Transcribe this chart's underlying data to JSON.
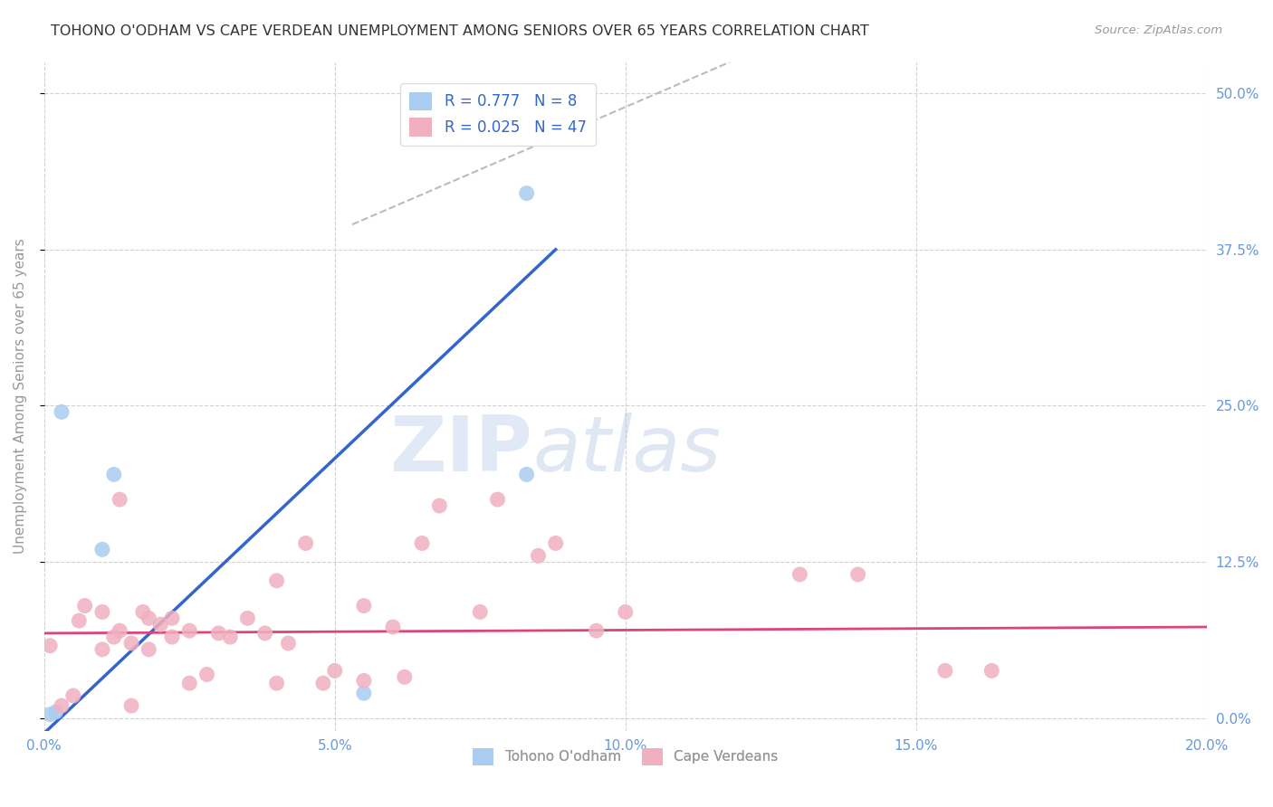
{
  "title": "TOHONO O'ODHAM VS CAPE VERDEAN UNEMPLOYMENT AMONG SENIORS OVER 65 YEARS CORRELATION CHART",
  "source": "Source: ZipAtlas.com",
  "ylabel": "Unemployment Among Seniors over 65 years",
  "xmin": 0.0,
  "xmax": 0.2,
  "ymin": -0.01,
  "ymax": 0.525,
  "xticks": [
    0.0,
    0.05,
    0.1,
    0.15,
    0.2
  ],
  "yticks": [
    0.0,
    0.125,
    0.25,
    0.375,
    0.5
  ],
  "ytick_labels_right": [
    "0.0%",
    "12.5%",
    "25.0%",
    "37.5%",
    "50.0%"
  ],
  "xtick_labels": [
    "0.0%",
    "5.0%",
    "10.0%",
    "15.0%",
    "20.0%"
  ],
  "blue_R": 0.777,
  "blue_N": 8,
  "pink_R": 0.025,
  "pink_N": 47,
  "blue_color": "#aaccf0",
  "pink_color": "#f0b0c0",
  "blue_line_color": "#3366cc",
  "pink_line_color": "#dd4477",
  "watermark_zip": "ZIP",
  "watermark_atlas": "atlas",
  "legend_label_blue": "Tohono O'odham",
  "legend_label_pink": "Cape Verdeans",
  "blue_points_x": [
    0.001,
    0.01,
    0.003,
    0.002,
    0.012,
    0.055,
    0.083,
    0.083
  ],
  "blue_points_y": [
    0.003,
    0.135,
    0.245,
    0.005,
    0.195,
    0.02,
    0.42,
    0.195
  ],
  "pink_points_x": [
    0.001,
    0.003,
    0.005,
    0.006,
    0.007,
    0.01,
    0.01,
    0.012,
    0.013,
    0.013,
    0.015,
    0.015,
    0.017,
    0.018,
    0.018,
    0.02,
    0.022,
    0.022,
    0.025,
    0.025,
    0.028,
    0.03,
    0.032,
    0.035,
    0.038,
    0.04,
    0.04,
    0.042,
    0.045,
    0.048,
    0.05,
    0.055,
    0.055,
    0.06,
    0.062,
    0.065,
    0.068,
    0.075,
    0.078,
    0.085,
    0.088,
    0.095,
    0.1,
    0.13,
    0.14,
    0.155,
    0.163
  ],
  "pink_points_y": [
    0.058,
    0.01,
    0.018,
    0.078,
    0.09,
    0.055,
    0.085,
    0.065,
    0.07,
    0.175,
    0.01,
    0.06,
    0.085,
    0.055,
    0.08,
    0.075,
    0.065,
    0.08,
    0.028,
    0.07,
    0.035,
    0.068,
    0.065,
    0.08,
    0.068,
    0.11,
    0.028,
    0.06,
    0.14,
    0.028,
    0.038,
    0.03,
    0.09,
    0.073,
    0.033,
    0.14,
    0.17,
    0.085,
    0.175,
    0.13,
    0.14,
    0.07,
    0.085,
    0.115,
    0.115,
    0.038,
    0.038
  ],
  "grid_color": "#cccccc",
  "bg_color": "#ffffff",
  "title_color": "#333333",
  "axis_label_color": "#999999",
  "tick_color": "#6699dd",
  "dashed_line_color": "#bbbbbb"
}
